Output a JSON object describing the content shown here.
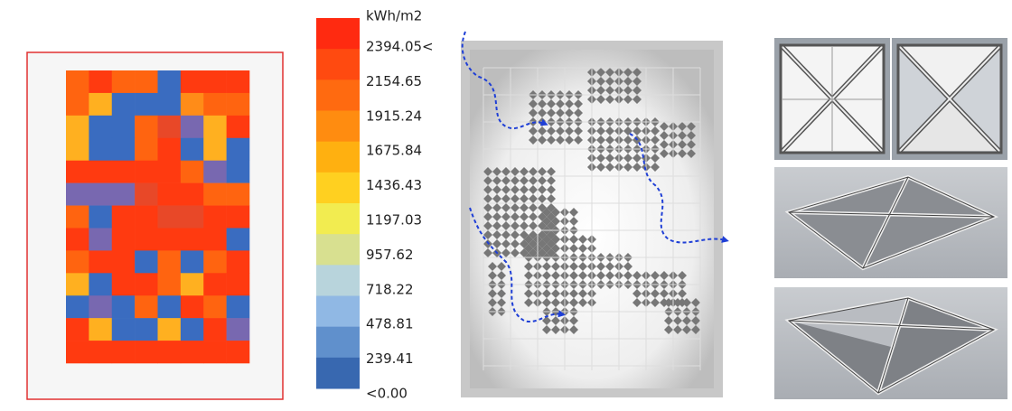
{
  "legend": {
    "unit": "kWh/m2",
    "labels": [
      "2394.05<",
      "2154.65",
      "1915.24",
      "1675.84",
      "1436.43",
      "1197.03",
      "957.62",
      "718.22",
      "478.81",
      "239.41",
      "<0.00"
    ]
  }
}
